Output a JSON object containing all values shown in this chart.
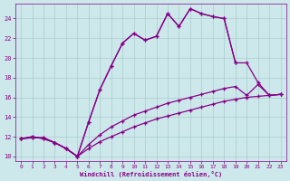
{
  "xlabel": "Windchill (Refroidissement éolien,°C)",
  "bg_color": "#cce8ea",
  "grid_color": "#aacccc",
  "line_color": "#880088",
  "xlim": [
    -0.5,
    23.5
  ],
  "ylim": [
    9.5,
    25.5
  ],
  "xticks": [
    0,
    1,
    2,
    3,
    4,
    5,
    6,
    7,
    8,
    9,
    10,
    11,
    12,
    13,
    14,
    15,
    16,
    17,
    18,
    19,
    20,
    21,
    22,
    23
  ],
  "yticks": [
    10,
    12,
    14,
    16,
    18,
    20,
    22,
    24
  ],
  "curve1_x": [
    0,
    1,
    2,
    3,
    4,
    5,
    6,
    7,
    8,
    9,
    10,
    11,
    12,
    13,
    14,
    15,
    16,
    17,
    18,
    19
  ],
  "curve1_y": [
    11.8,
    12.0,
    11.8,
    11.4,
    10.8,
    10.0,
    13.5,
    16.8,
    19.2,
    21.5,
    22.5,
    21.8,
    22.2,
    24.5,
    23.2,
    25.0,
    24.5,
    24.2,
    24.0,
    19.5
  ],
  "curve2_x": [
    0,
    1,
    2,
    3,
    4,
    5,
    6,
    7,
    8,
    9,
    10,
    11,
    12,
    13,
    14,
    15,
    16,
    17,
    18,
    19,
    20,
    21,
    22,
    23
  ],
  "curve2_y": [
    11.8,
    12.0,
    11.8,
    11.4,
    10.8,
    10.0,
    13.5,
    16.8,
    19.2,
    21.5,
    22.5,
    21.8,
    22.2,
    24.5,
    23.2,
    25.0,
    24.5,
    24.2,
    24.0,
    19.5,
    19.5,
    17.5,
    16.2,
    16.3
  ],
  "curve3_x": [
    0,
    1,
    2,
    3,
    4,
    5,
    6,
    7,
    8,
    9,
    10,
    11,
    12,
    13,
    14,
    15,
    16,
    17,
    18,
    19,
    20,
    21,
    22,
    23
  ],
  "curve3_y": [
    11.8,
    11.9,
    11.9,
    11.4,
    10.8,
    10.0,
    11.2,
    12.2,
    13.0,
    13.6,
    14.2,
    14.6,
    15.0,
    15.4,
    15.7,
    16.0,
    16.3,
    16.6,
    16.9,
    17.1,
    16.2,
    17.3,
    16.2,
    16.3
  ],
  "curve4_x": [
    0,
    1,
    2,
    3,
    4,
    5,
    6,
    7,
    8,
    9,
    10,
    11,
    12,
    13,
    14,
    15,
    16,
    17,
    18,
    19,
    20,
    21,
    22,
    23
  ],
  "curve4_y": [
    11.8,
    11.9,
    11.9,
    11.4,
    10.8,
    10.0,
    10.8,
    11.5,
    12.0,
    12.5,
    13.0,
    13.4,
    13.8,
    14.1,
    14.4,
    14.7,
    15.0,
    15.3,
    15.6,
    15.8,
    16.0,
    16.1,
    16.2,
    16.3
  ]
}
